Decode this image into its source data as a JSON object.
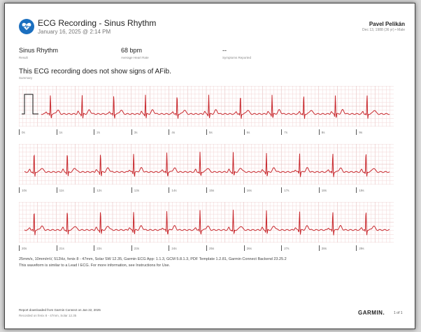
{
  "header": {
    "title": "ECG Recording - Sinus Rhythm",
    "datetime": "January 16, 2025 @ 2:14 PM",
    "user_name": "Pavel Pelikán",
    "user_info": "Dec 13, 1988 (36 yr) • Male"
  },
  "stats": [
    {
      "value": "Sinus Rhythm",
      "label": "Result"
    },
    {
      "value": "68 bpm",
      "label": "Average Heart Rate"
    },
    {
      "value": "--",
      "label": "Symptoms Reported"
    }
  ],
  "summary": {
    "text": "This ECG recording does not show signs of AFib.",
    "label": "Summary"
  },
  "strips": [
    {
      "seconds": [
        "0s",
        "1s",
        "2s",
        "3s",
        "4s",
        "5s",
        "6s",
        "7s",
        "8s",
        "9s"
      ],
      "calibration_pulse": true
    },
    {
      "seconds": [
        "10s",
        "11s",
        "12s",
        "13s",
        "14s",
        "15s",
        "16s",
        "17s",
        "18s",
        "19s"
      ],
      "calibration_pulse": false
    },
    {
      "seconds": [
        "20s",
        "21s",
        "22s",
        "23s",
        "24s",
        "25s",
        "26s",
        "27s",
        "28s",
        "29s"
      ],
      "calibration_pulse": false
    }
  ],
  "footer": {
    "specs": "25mm/s, 10mm/mV, 512Hz, fenix 8 - 47mm, Solar SW 12.35, Garmin ECG App: 1.1.3, GCM 5.8.1.3, PDF Template 1.2.81, Garmin Connect Backend 23.25.2",
    "disclaimer": "This waveform is similar to a Lead I ECG. For more information, see Instructions for Use.",
    "report": "Report downloaded from Garmin Connect on Jan 22, 2025",
    "recorded_on": "Recorded on fenix 8 - 47mm, Solar 12.35",
    "brand": "GARMIN.",
    "page": "1 of 1"
  },
  "colors": {
    "grid_minor": "#f3d6d6",
    "grid_major": "#e2b3b3",
    "trace": "#c8282d",
    "logo": "#1b6fbf"
  },
  "ecg": {
    "seconds_per_strip": 10,
    "beats_per_strip": 11,
    "r_wave_amplitude_mV": 1.0
  }
}
